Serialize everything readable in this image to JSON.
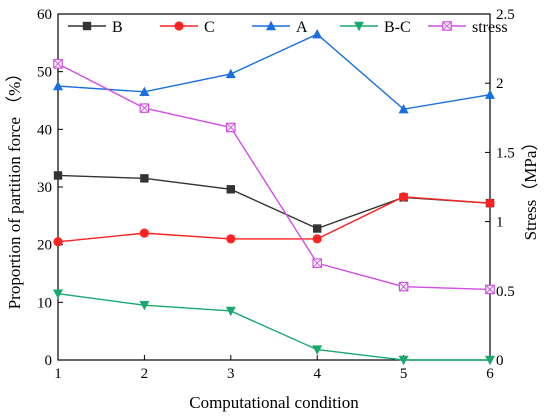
{
  "chart_data": {
    "type": "line",
    "xlabel": "Computational condition",
    "ylabel_left": "Proportion of partition force （%）",
    "ylabel_right": "Stress（MPa）",
    "x": [
      1,
      2,
      3,
      4,
      5,
      6
    ],
    "x_ticks": [
      "1",
      "2",
      "3",
      "4",
      "5",
      "6"
    ],
    "xlim": [
      1,
      6
    ],
    "ylim_left": [
      0,
      60
    ],
    "y_ticks_left": [
      "0",
      "10",
      "20",
      "30",
      "40",
      "50",
      "60"
    ],
    "ylim_right": [
      0,
      2.5
    ],
    "y_ticks_right": [
      "0",
      "0.5",
      "1",
      "1.5",
      "2",
      "2.5"
    ],
    "legend_position": "top",
    "grid": false,
    "series": [
      {
        "name": "B",
        "axis": "left",
        "color": "#333333",
        "marker": "square",
        "values": [
          32.0,
          31.5,
          29.6,
          22.8,
          28.2,
          27.2
        ]
      },
      {
        "name": "C",
        "axis": "left",
        "color": "#ff2222",
        "marker": "circle",
        "values": [
          20.5,
          22.0,
          21.0,
          21.0,
          28.3,
          27.2
        ]
      },
      {
        "name": "A",
        "axis": "left",
        "color": "#1a6fe0",
        "marker": "triangle-up",
        "values": [
          47.5,
          46.5,
          49.6,
          56.5,
          43.5,
          46.0
        ]
      },
      {
        "name": "B-C",
        "axis": "left",
        "color": "#1aa870",
        "marker": "triangle-down",
        "values": [
          11.5,
          9.5,
          8.5,
          1.8,
          0.0,
          0.0
        ]
      },
      {
        "name": "stress",
        "axis": "right",
        "color": "#d24ee6",
        "marker": "crossed-square",
        "values": [
          2.14,
          1.82,
          1.68,
          0.7,
          0.53,
          0.51
        ]
      }
    ]
  }
}
